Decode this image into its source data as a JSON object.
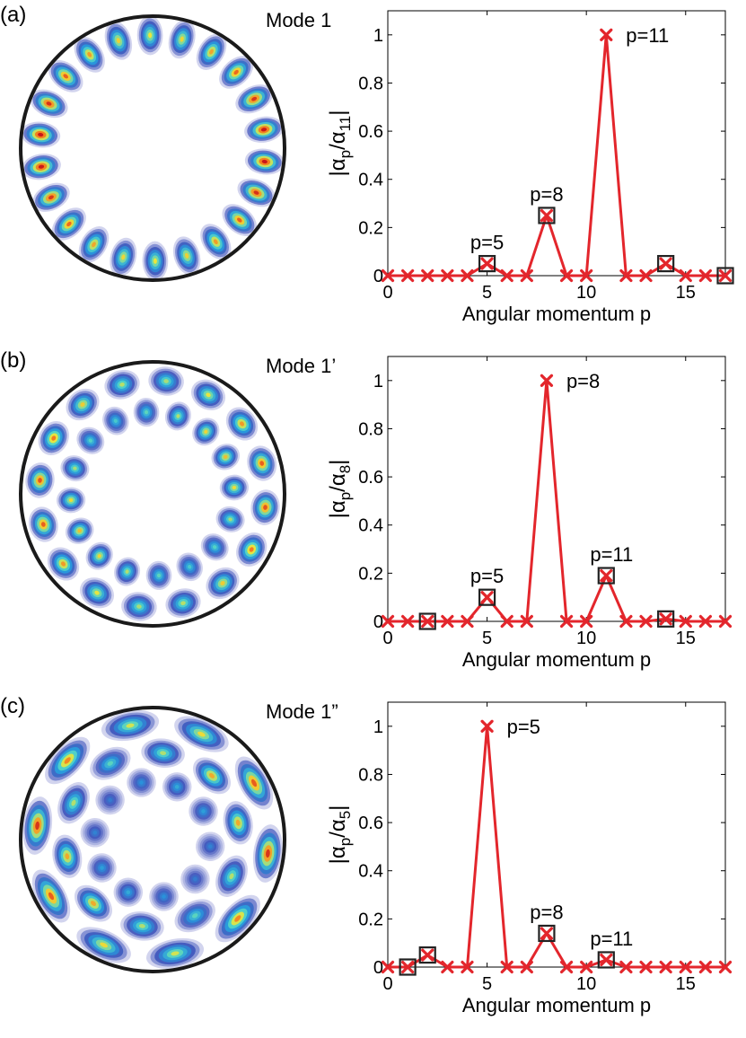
{
  "panels": [
    {
      "panel_label": "(a)",
      "mode_label": "Mode 1",
      "pattern": {
        "rings": [
          {
            "lobes": 22,
            "phase": 0,
            "strength": 1.0
          }
        ]
      }
    },
    {
      "panel_label": "(b)",
      "mode_label": "Mode 1’",
      "pattern": {
        "rings": [
          {
            "lobes": 16,
            "phase": 0,
            "strength": 0.9
          },
          {
            "lobes": 16,
            "phase": 0.5,
            "strength": 0.75
          }
        ]
      }
    },
    {
      "panel_label": "(c)",
      "mode_label": "Mode 1”",
      "pattern": {
        "rings": [
          {
            "lobes": 10,
            "phase": 0,
            "strength": 0.95
          },
          {
            "lobes": 10,
            "phase": 0.5,
            "strength": 0.8
          },
          {
            "lobes": 10,
            "phase": 0,
            "strength": 0.45
          }
        ]
      }
    }
  ],
  "chart_data": [
    {
      "type": "line",
      "xlabel": "Angular momentum p",
      "ylabel_main": "|α",
      "ylabel_sub1": "p",
      "ylabel_mid": "/α",
      "ylabel_sub2": "11",
      "ylabel_end": "|",
      "xlim": [
        0,
        17
      ],
      "ylim": [
        0,
        1.1
      ],
      "xticks": [
        0,
        5,
        10,
        15
      ],
      "yticks": [
        0,
        0.2,
        0.4,
        0.6,
        0.8,
        1
      ],
      "ytick_labels": [
        "0",
        "0.2",
        "0.4",
        "0.6",
        "0.8",
        "1"
      ],
      "series": [
        {
          "x": [
            0,
            1,
            2,
            3,
            4,
            5,
            6,
            7,
            8,
            9,
            10,
            11,
            12,
            13,
            14,
            15,
            16,
            17
          ],
          "y": [
            0,
            0,
            0,
            0,
            0,
            0.05,
            0,
            0,
            0.25,
            0,
            0,
            1,
            0,
            0,
            0.05,
            0,
            0,
            0
          ],
          "color": "#e3262c"
        }
      ],
      "boxed_x": [
        5,
        8,
        14,
        17
      ],
      "annotations": [
        {
          "text": "p=5",
          "x": 5
        },
        {
          "text": "p=8",
          "x": 8
        },
        {
          "text": "p=11",
          "x": 11
        }
      ]
    },
    {
      "type": "line",
      "xlabel": "Angular momentum p",
      "ylabel_main": "|α",
      "ylabel_sub1": "p",
      "ylabel_mid": "/α",
      "ylabel_sub2": "8",
      "ylabel_end": "|",
      "xlim": [
        0,
        17
      ],
      "ylim": [
        0,
        1.1
      ],
      "xticks": [
        0,
        5,
        10,
        15
      ],
      "yticks": [
        0,
        0.2,
        0.4,
        0.6,
        0.8,
        1
      ],
      "ytick_labels": [
        "0",
        "0.2",
        "0.4",
        "0.6",
        "0.8",
        "1"
      ],
      "series": [
        {
          "x": [
            0,
            1,
            2,
            3,
            4,
            5,
            6,
            7,
            8,
            9,
            10,
            11,
            12,
            13,
            14,
            15,
            16,
            17
          ],
          "y": [
            0,
            0,
            0,
            0,
            0,
            0.1,
            0,
            0,
            1,
            0,
            0,
            0.19,
            0,
            0,
            0.01,
            0,
            0,
            0
          ],
          "color": "#e3262c"
        }
      ],
      "boxed_x": [
        2,
        5,
        11,
        14
      ],
      "annotations": [
        {
          "text": "p=5",
          "x": 5
        },
        {
          "text": "p=8",
          "x": 8
        },
        {
          "text": "p=11",
          "x": 11
        }
      ]
    },
    {
      "type": "line",
      "xlabel": "Angular momentum p",
      "ylabel_main": "|α",
      "ylabel_sub1": "p",
      "ylabel_mid": "/α",
      "ylabel_sub2": "5",
      "ylabel_end": "|",
      "xlim": [
        0,
        17
      ],
      "ylim": [
        0,
        1.1
      ],
      "xticks": [
        0,
        5,
        10,
        15
      ],
      "yticks": [
        0,
        0.2,
        0.4,
        0.6,
        0.8,
        1
      ],
      "ytick_labels": [
        "0",
        "0.2",
        "0.4",
        "0.6",
        "0.8",
        "1"
      ],
      "series": [
        {
          "x": [
            0,
            1,
            2,
            3,
            4,
            5,
            6,
            7,
            8,
            9,
            10,
            11,
            12,
            13,
            14,
            15,
            16,
            17
          ],
          "y": [
            0,
            0,
            0.05,
            0,
            0,
            1,
            0,
            0,
            0.14,
            0,
            0,
            0.03,
            0,
            0,
            0,
            0,
            0,
            0
          ],
          "color": "#e3262c"
        }
      ],
      "boxed_x": [
        1,
        2,
        8,
        11
      ],
      "annotations": [
        {
          "text": "p=5",
          "x": 5
        },
        {
          "text": "p=8",
          "x": 8
        },
        {
          "text": "p=11",
          "x": 11
        }
      ]
    }
  ]
}
